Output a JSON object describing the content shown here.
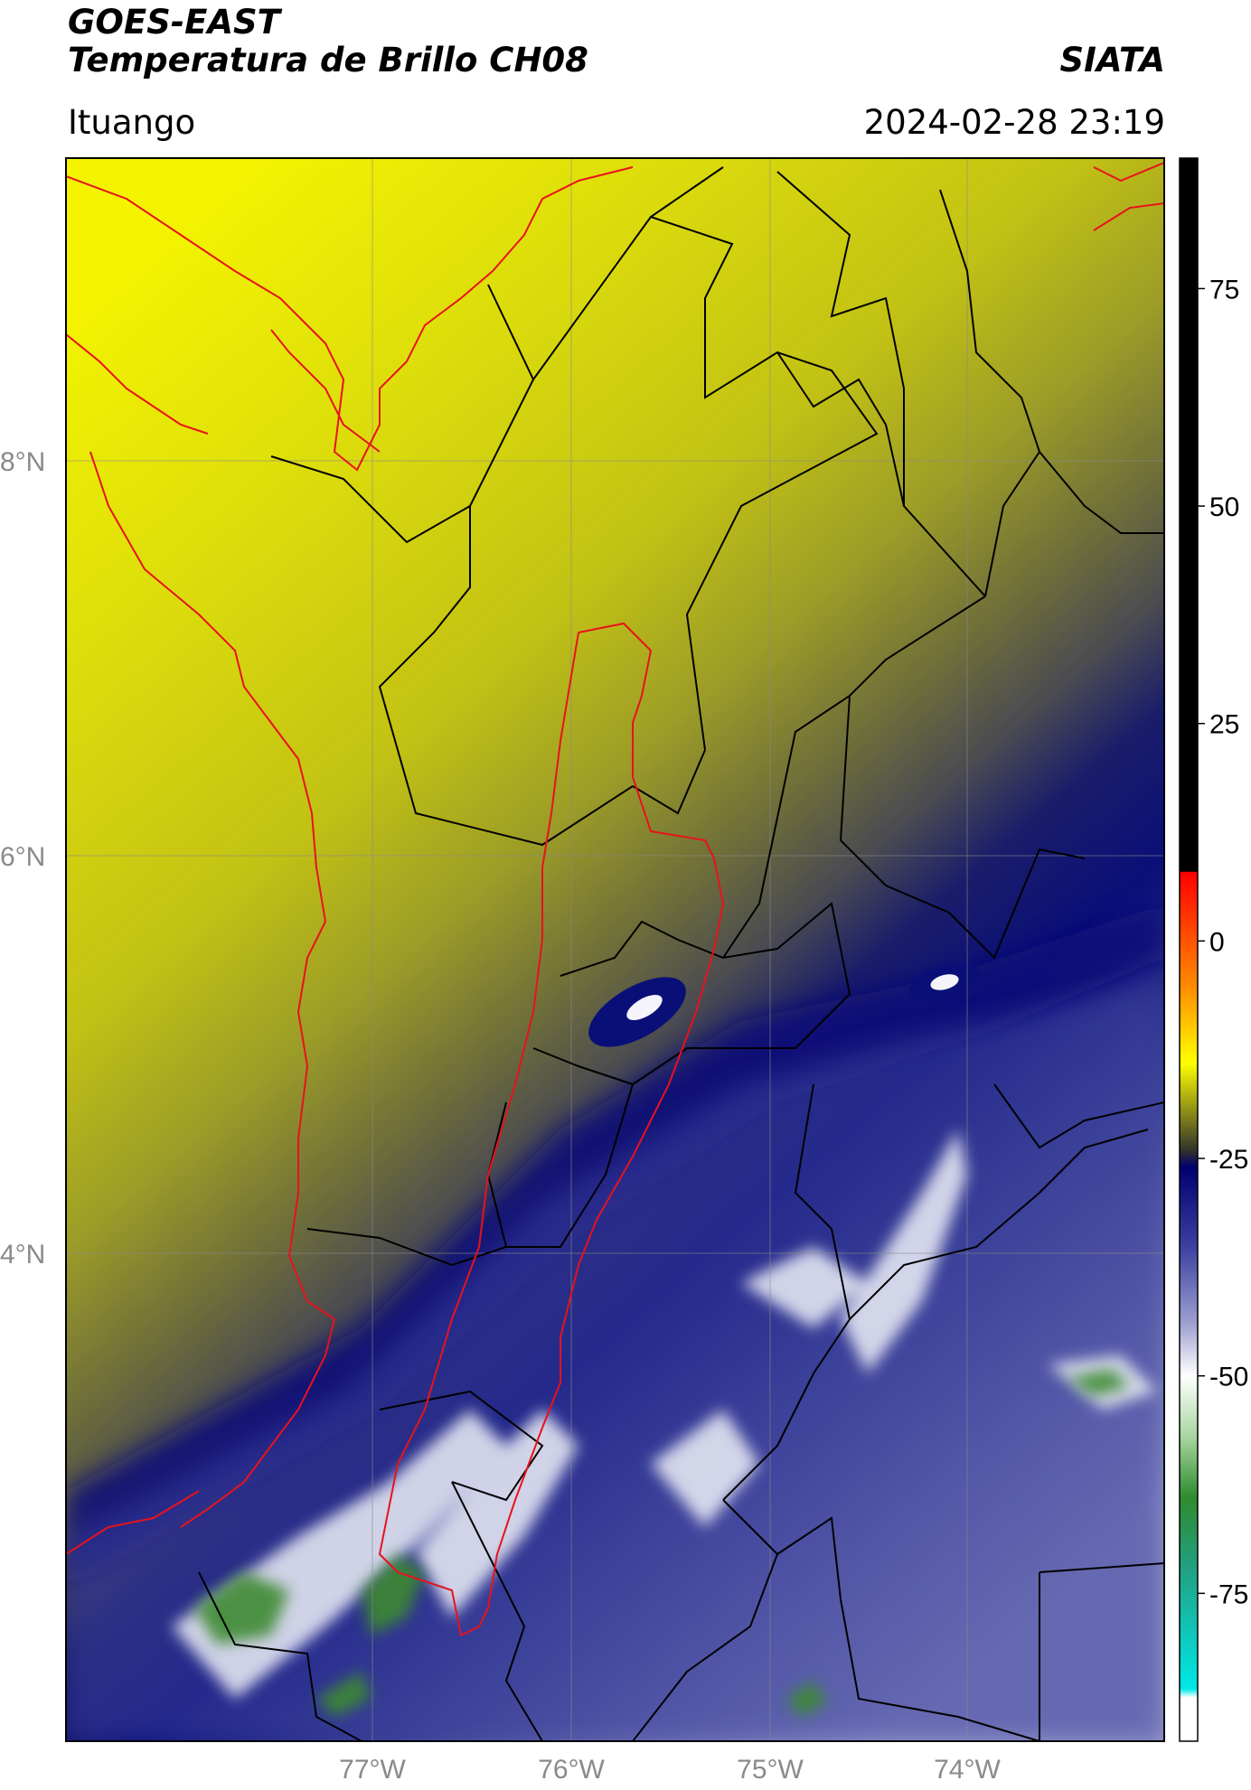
{
  "header": {
    "title_line1": "GOES-EAST",
    "title_line2": "Temperatura de Brillo CH08",
    "organization": "SIATA",
    "place": "Ituango",
    "datetime": "2024-02-28 23:19"
  },
  "map": {
    "lat_labels": [
      "8°N",
      "6°N",
      "4°N"
    ],
    "lon_labels": [
      "77°W",
      "76°W",
      "75°W",
      "74°W"
    ],
    "colors": {
      "north_yellow": "#f1f100",
      "mid_olive": "#8f8f30",
      "dark_gray": "#3c3c55",
      "deep_blue": "#0a0f78",
      "cloud_white": "#f0f0f5",
      "cloud_green": "#3c8a32",
      "border_red": "#e8121c",
      "border_black": "#000000"
    }
  },
  "colorbar": {
    "tick_labels": [
      "75",
      "50",
      "25",
      "0",
      "-25",
      "-50",
      "-75"
    ],
    "stops": [
      {
        "value": 90,
        "color": "#000000"
      },
      {
        "value": 8,
        "color": "#000000"
      },
      {
        "value": 7.9,
        "color": "#ff0000"
      },
      {
        "value": -5,
        "color": "#ff8800"
      },
      {
        "value": -14,
        "color": "#ffff00"
      },
      {
        "value": -24,
        "color": "#34342a"
      },
      {
        "value": -26,
        "color": "#000070"
      },
      {
        "value": -35,
        "color": "#3a3fa0"
      },
      {
        "value": -44,
        "color": "#9ea0d0"
      },
      {
        "value": -50,
        "color": "#ffffff"
      },
      {
        "value": -57,
        "color": "#a8d6a0"
      },
      {
        "value": -64,
        "color": "#2e8b2e"
      },
      {
        "value": -72,
        "color": "#22a080"
      },
      {
        "value": -86,
        "color": "#00e8e8"
      },
      {
        "value": -87,
        "color": "#ffffff"
      },
      {
        "value": -92,
        "color": "#ffffff"
      }
    ]
  }
}
